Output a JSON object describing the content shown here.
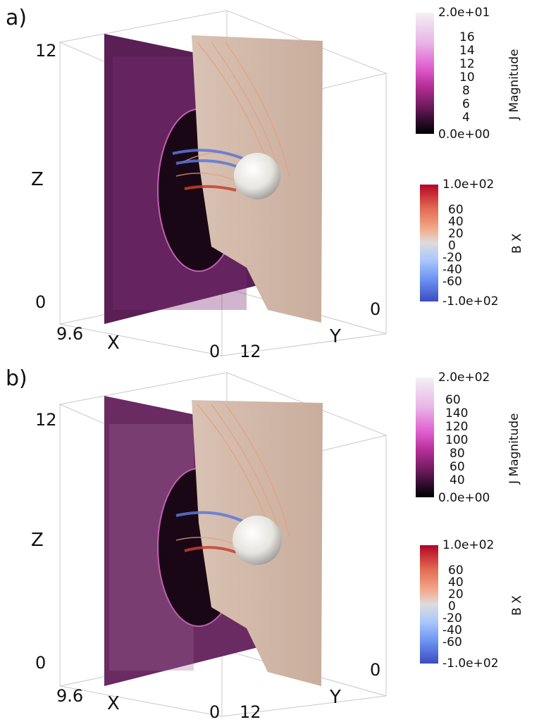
{
  "panels": [
    {
      "label": "a)",
      "axes": {
        "z_top": "12",
        "z_name": "Z",
        "z_bottom": "0",
        "x_left": "9.6",
        "x_name": "X",
        "x_right": "0",
        "y_left": "12",
        "y_name": "Y",
        "y_right": "0"
      },
      "colorbars": [
        {
          "title": "J Magnitude",
          "top": "2.0e+01",
          "bottom": "0.0e+00",
          "ticks": [
            "16",
            "14",
            "12",
            "10",
            "8",
            "6",
            "4"
          ],
          "colors": [
            "#f4f0f4",
            "#e8b4e6",
            "#e060d0",
            "#b8309a",
            "#6a1a5a",
            "#220a22",
            "#000000"
          ]
        },
        {
          "title": "B X",
          "top": "1.0e+02",
          "bottom": "-1.0e+02",
          "ticks": [
            "60",
            "40",
            "20",
            "0",
            "-20",
            "-40",
            "-60"
          ],
          "colors": [
            "#b40426",
            "#e16950",
            "#f4a98b",
            "#dddcdc",
            "#a9c6fd",
            "#6a8ff0",
            "#3b4cc0"
          ]
        }
      ]
    },
    {
      "label": "b)",
      "axes": {
        "z_top": "12",
        "z_name": "Z",
        "z_bottom": "0",
        "x_left": "9.6",
        "x_name": "X",
        "x_right": "0",
        "y_left": "12",
        "y_name": "Y",
        "y_right": "0"
      },
      "colorbars": [
        {
          "title": "J Magnitude",
          "top": "2.0e+02",
          "bottom": "0.0e+00",
          "ticks": [
            "160",
            "140",
            "120",
            "100",
            "80",
            "60",
            "40"
          ],
          "colors": [
            "#f4f0f4",
            "#e8b4e6",
            "#e060d0",
            "#b8309a",
            "#6a1a5a",
            "#220a22",
            "#000000"
          ]
        },
        {
          "title": "B X",
          "top": "1.0e+02",
          "bottom": "-1.0e+02",
          "ticks": [
            "60",
            "40",
            "20",
            "0",
            "-20",
            "-40",
            "-60"
          ],
          "colors": [
            "#b40426",
            "#e16950",
            "#f4a98b",
            "#dddcdc",
            "#a9c6fd",
            "#6a8ff0",
            "#3b4cc0"
          ]
        }
      ]
    }
  ]
}
